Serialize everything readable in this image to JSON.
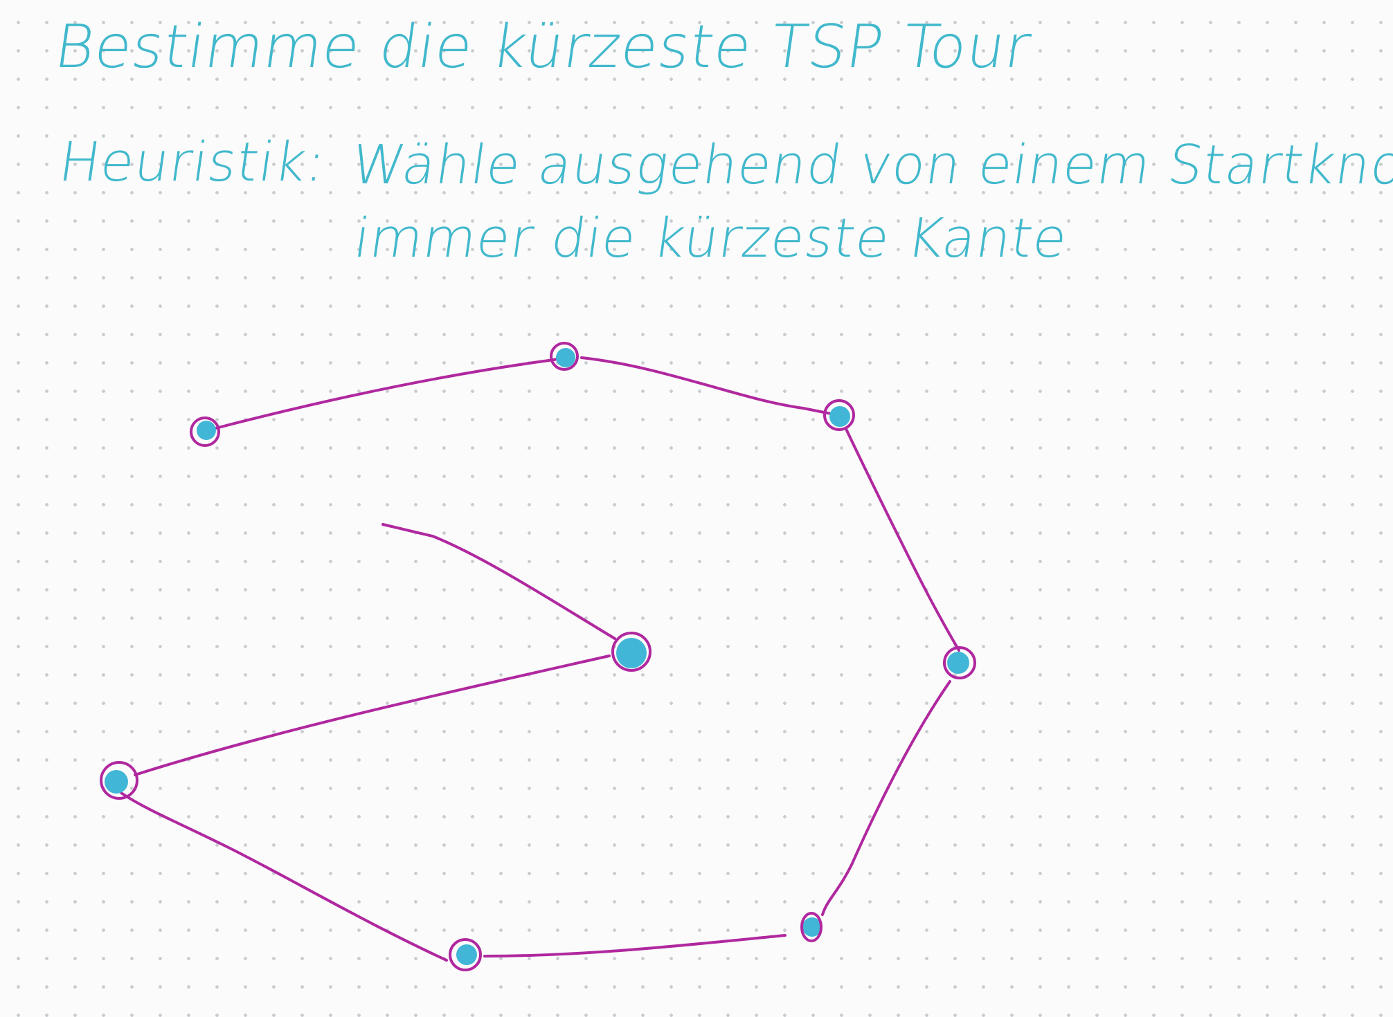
{
  "title": "Bestimme die kürzeste TSP Tour",
  "heuristic": {
    "label": "Heuristik:",
    "line1": "Wähle ausgehend von einem Startknoten",
    "line2": "immer die kürzeste Kante"
  },
  "colors": {
    "ink_text": "#41b8cc",
    "ink_edges": "#b0289f",
    "node_fill": "#42b6d6",
    "paper": "#fbfbfb",
    "dots": "#c9ccd0"
  },
  "diagram": {
    "node_count": 8,
    "edge_count": 8,
    "tour_closed": false
  }
}
